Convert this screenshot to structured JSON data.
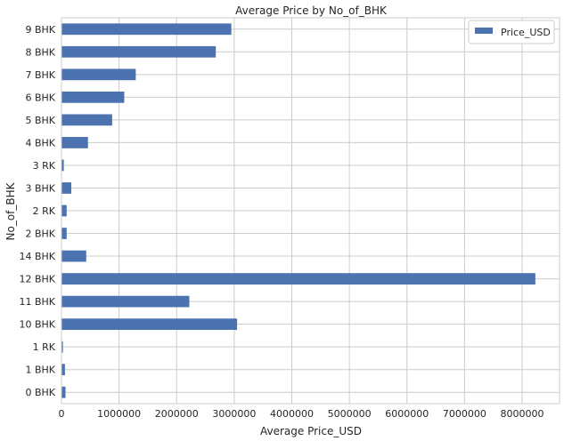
{
  "chart_data": {
    "type": "bar",
    "orientation": "horizontal",
    "title": "Average Price by No_of_BHK",
    "xlabel": "Average Price_USD",
    "ylabel": "No_of_BHK",
    "categories": [
      "0 BHK",
      "1 BHK",
      "1 RK",
      "10 BHK",
      "11 BHK",
      "12 BHK",
      "14 BHK",
      "2 BHK",
      "2 RK",
      "3 BHK",
      "3 RK",
      "4 BHK",
      "5 BHK",
      "6 BHK",
      "7 BHK",
      "8 BHK",
      "9 BHK"
    ],
    "series": [
      {
        "name": "Price_USD",
        "color": "#4c72b0",
        "values": [
          70000,
          60000,
          25000,
          3050000,
          2220000,
          8230000,
          430000,
          90000,
          90000,
          170000,
          40000,
          460000,
          880000,
          1090000,
          1290000,
          2680000,
          2950000
        ]
      }
    ],
    "xlim": [
      0,
      8650000
    ],
    "xticks": [
      0,
      1000000,
      2000000,
      3000000,
      4000000,
      5000000,
      6000000,
      7000000,
      8000000
    ],
    "xtick_labels": [
      "0",
      "1000000",
      "2000000",
      "3000000",
      "4000000",
      "5000000",
      "6000000",
      "7000000",
      "8000000"
    ],
    "grid": true,
    "legend_position": "top-right"
  }
}
